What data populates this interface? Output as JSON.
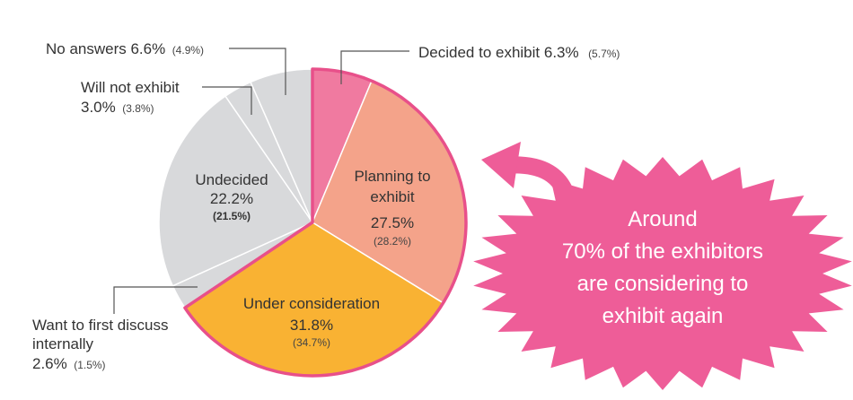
{
  "chart_data": {
    "type": "pie",
    "title": "",
    "slices": [
      {
        "id": "decided",
        "label": "Decided to exhibit",
        "value": 6.3,
        "display": "6.3%",
        "previous": "(5.7%)",
        "color": "#f07aa0",
        "emphasized": true
      },
      {
        "id": "planning",
        "label": "Planning to exhibit",
        "label_lines": [
          "Planning to",
          "exhibit"
        ],
        "value": 27.5,
        "display": "27.5%",
        "previous": "(28.2%)",
        "color": "#f4a38a",
        "emphasized": true
      },
      {
        "id": "consideration",
        "label": "Under consideration",
        "label_lines": [
          "Under consideration"
        ],
        "value": 31.8,
        "display": "31.8%",
        "previous": "(34.7%)",
        "color": "#f9b233",
        "emphasized": true
      },
      {
        "id": "discuss",
        "label": "Want to first discuss internally",
        "value": 2.6,
        "display": "2.6%",
        "previous": "(1.5%)",
        "color": "#d8d9db",
        "emphasized": false
      },
      {
        "id": "undecided",
        "label": "Undecided",
        "label_lines": [
          "Undecided"
        ],
        "value": 22.2,
        "display": "22.2%",
        "previous": "(21.5%)",
        "color": "#d8d9db",
        "emphasized": false
      },
      {
        "id": "will_not",
        "label": "Will not exhibit",
        "value": 3.0,
        "display": "3.0%",
        "previous": "(3.8%)",
        "color": "#d8d9db",
        "emphasized": false
      },
      {
        "id": "no_answer",
        "label": "No answers",
        "value": 6.6,
        "display": "6.6%",
        "previous": "(4.9%)",
        "color": "#d8d9db",
        "emphasized": false
      }
    ],
    "external_labels": {
      "decided": {
        "text": "Decided to exhibit 6.3%",
        "prev": "(5.7%)"
      },
      "no_answer": {
        "text": "No answers 6.6%",
        "prev": "(4.9%)"
      },
      "will_not_line1": {
        "text": "Will not exhibit"
      },
      "will_not_line2": {
        "text": "3.0%",
        "prev": "(3.8%)"
      },
      "discuss_line1": {
        "text": "Want to first discuss"
      },
      "discuss_line2": {
        "text": "internally"
      },
      "discuss_line3": {
        "text": "2.6%",
        "prev": "(1.5%)"
      }
    },
    "highlight_outline_color": "#e8508a"
  },
  "callout": {
    "lines": [
      "Around",
      "70% of the exhibitors",
      "are considering to",
      "exhibit again"
    ],
    "color": "#ee5d98",
    "arrow_color": "#ee5d98"
  }
}
